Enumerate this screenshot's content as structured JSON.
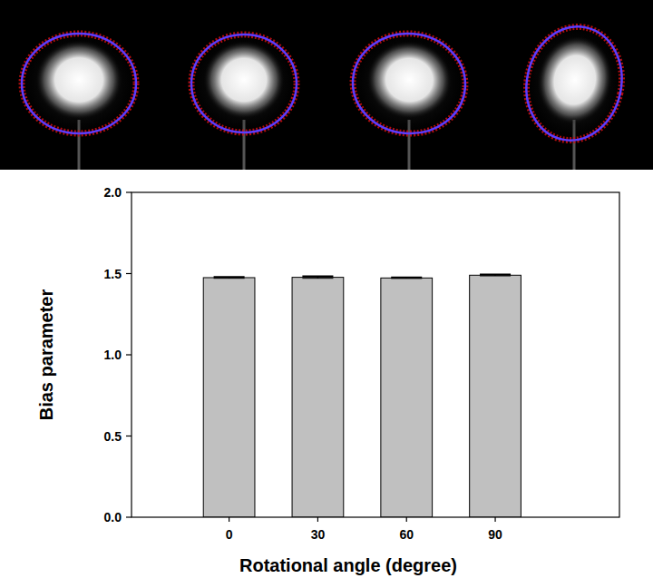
{
  "chart_data": {
    "type": "bar",
    "categories": [
      "0",
      "30",
      "60",
      "90"
    ],
    "values": [
      1.475,
      1.477,
      1.473,
      1.49
    ],
    "errors": [
      0.004,
      0.006,
      0.003,
      0.004
    ],
    "color": "#c0c0c0",
    "x_label": "Rotational angle (degree)",
    "y_label": "Bias parameter",
    "ylim": [
      0,
      2.0
    ],
    "yticks": [
      {
        "value": 0,
        "label": "0.0"
      },
      0.5,
      {
        "value": 1.0,
        "label": "1.0"
      },
      1.5,
      {
        "value": 2.0,
        "label": "2.0"
      }
    ]
  }
}
